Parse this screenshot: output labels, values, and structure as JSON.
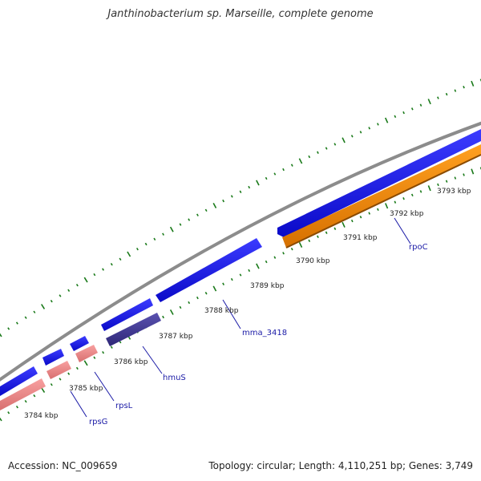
{
  "title": "Janthinobacterium sp. Marseille, complete genome",
  "footer": {
    "accession": "Accession: NC_009659",
    "summary": "Topology: circular; Length: 4,110,251 bp; Genes: 3,749"
  },
  "colors": {
    "backbone": "#8c8c8c",
    "forward_gene": "#1414e6",
    "reverse_gene": "#ff8c00",
    "rps_pink": "#f08c8c",
    "hmuS_purple": "#48409a",
    "ticks": "#1a7a1a",
    "label": "#1a1aa6"
  },
  "scale_labels": [
    "3784 kbp",
    "3785 kbp",
    "3786 kbp",
    "3787 kbp",
    "3788 kbp",
    "3789 kbp",
    "3790 kbp",
    "3791 kbp",
    "3792 kbp",
    "3793 kbp"
  ],
  "gene_labels": {
    "rpsG": "rpsG",
    "rpsL": "rpsL",
    "hmuS": "hmuS",
    "mma_3418": "mma_3418",
    "rpoC": "rpoC"
  }
}
